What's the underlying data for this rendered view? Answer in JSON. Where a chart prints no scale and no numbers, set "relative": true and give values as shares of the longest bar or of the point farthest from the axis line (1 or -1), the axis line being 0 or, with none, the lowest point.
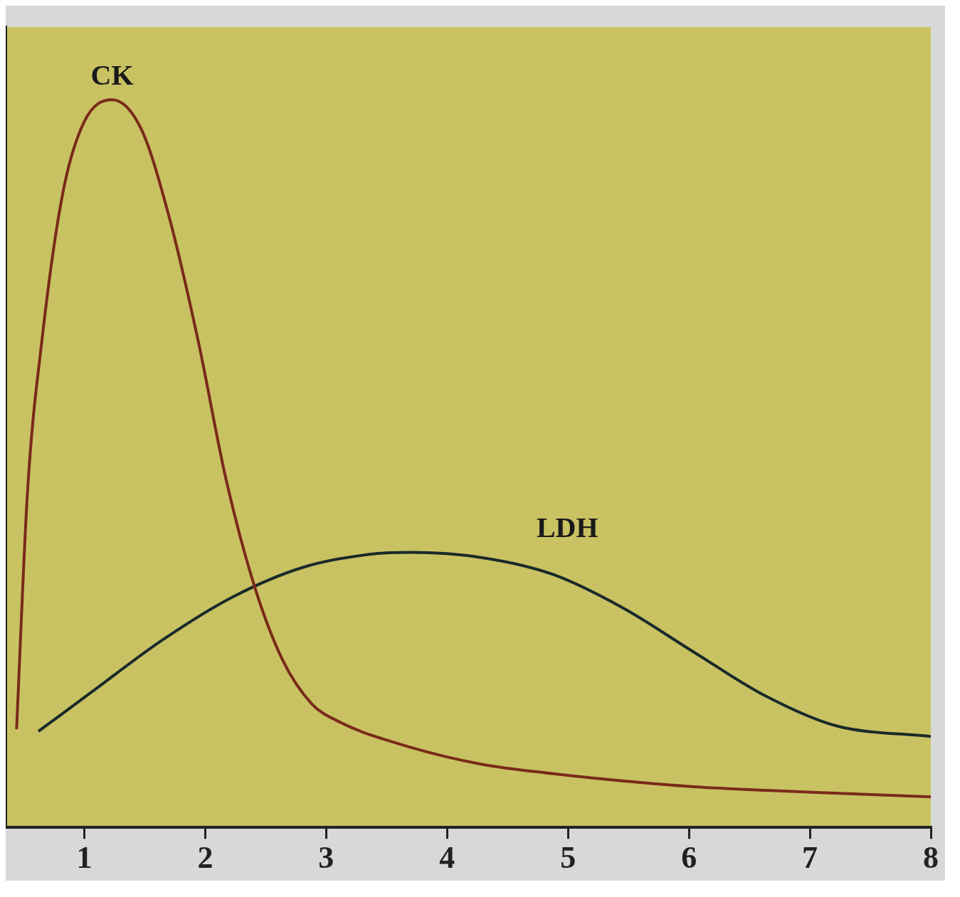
{
  "chart_data": {
    "type": "line",
    "relative": true,
    "xlim": [
      0.35,
      8
    ],
    "xticks": [
      1,
      2,
      3,
      4,
      5,
      6,
      7,
      8
    ],
    "grid": false,
    "legend": false,
    "marker": "none",
    "line_style": "solid",
    "series": [
      {
        "name": "CK",
        "color": "#7a2a1a",
        "x": [
          0.44,
          0.53,
          0.65,
          0.82,
          1.0,
          1.23,
          1.47,
          1.7,
          1.94,
          2.17,
          2.41,
          2.64,
          2.88,
          3.11,
          3.7,
          4.28,
          4.87,
          5.45,
          6.04,
          6.63,
          7.21,
          8.0
        ],
        "values": [
          0.135,
          0.46,
          0.67,
          0.87,
          0.97,
          1,
          0.96,
          0.84,
          0.67,
          0.48,
          0.33,
          0.23,
          0.17,
          0.145,
          0.11,
          0.087,
          0.074,
          0.064,
          0.056,
          0.051,
          0.047,
          0.042
        ]
      },
      {
        "name": "LDH",
        "color": "#1a2a2a",
        "x": [
          0.62,
          1.06,
          1.64,
          2.23,
          2.82,
          3.4,
          3.7,
          4.28,
          4.87,
          5.45,
          6.04,
          6.63,
          7.21,
          8.0
        ],
        "values": [
          0.132,
          0.186,
          0.257,
          0.317,
          0.358,
          0.376,
          0.378,
          0.371,
          0.348,
          0.302,
          0.241,
          0.181,
          0.14,
          0.125
        ]
      }
    ]
  }
}
